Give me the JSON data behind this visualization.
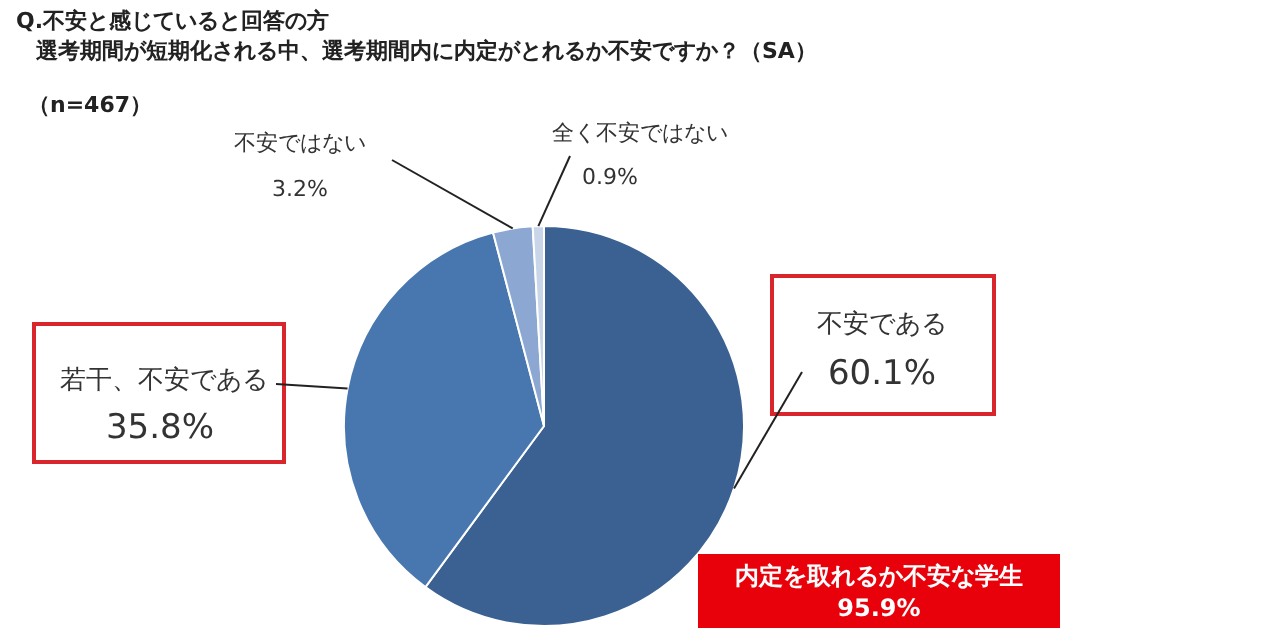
{
  "chart_data": {
    "type": "pie",
    "title": "Q.不安と感じていると回答の方",
    "subtitle": "選考期間が短期化される中、選考期間内に内定がとれるか不安ですか？（SA）",
    "categories": [
      "不安である",
      "若干、不安である",
      "不安ではない",
      "全く不安ではない"
    ],
    "values": [
      60.1,
      35.8,
      3.2,
      0.9
    ],
    "colors": [
      "#3b6192",
      "#4877b0",
      "#8ca8d2",
      "#c9d6ea"
    ],
    "value_labels": [
      "60.1%",
      "35.8%",
      "3.2%",
      "0.9%"
    ],
    "annotations": [
      "（n=467）",
      "内定を取れるか不安な学生 95.9%"
    ]
  }
}
